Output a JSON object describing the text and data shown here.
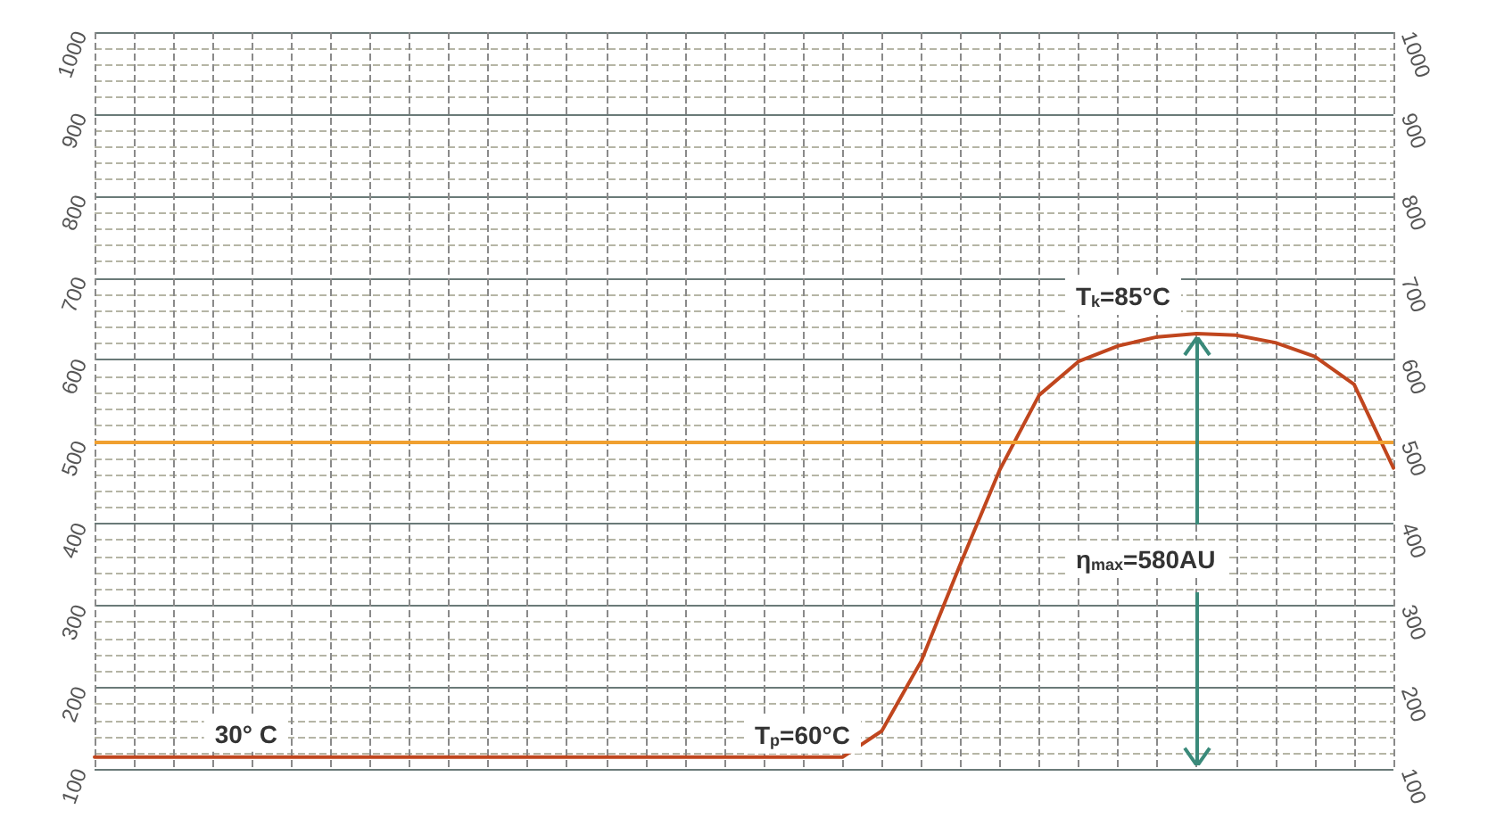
{
  "chart_data": {
    "type": "line",
    "categories": [
      null,
      null,
      null,
      null,
      null,
      null,
      null,
      null,
      null,
      null,
      null,
      null,
      null,
      null,
      null,
      null,
      null,
      null,
      null,
      null,
      null,
      null,
      null,
      null,
      null,
      null,
      null,
      null,
      null,
      null,
      null,
      null,
      null,
      null
    ],
    "series": [
      {
        "color": "#c0461e",
        "values": [
          115,
          115,
          115,
          115,
          115,
          115,
          115,
          115,
          115,
          115,
          115,
          115,
          115,
          115,
          115,
          115,
          115,
          115,
          115,
          115,
          147,
          232,
          351,
          466,
          557,
          598,
          617,
          628,
          632,
          630,
          621,
          604,
          570,
          468
        ]
      }
    ],
    "ylim": [
      100,
      1000
    ],
    "yticks": [
      100,
      200,
      300,
      400,
      500,
      600,
      700,
      800,
      900,
      1000
    ],
    "y2lim": [
      100,
      1000
    ],
    "y2ticks": [
      100,
      200,
      300,
      400,
      500,
      600,
      700,
      800,
      900,
      1000
    ],
    "ref_lines": [
      {
        "axis": "y",
        "value": 500,
        "color": "#f0a030"
      }
    ],
    "annotations": [
      "30° C",
      "T$_{p}$=60°C",
      "T$_{k}$=85°C",
      "η$_{max}$=580AU"
    ],
    "grid": true,
    "line_style": "solid"
  }
}
